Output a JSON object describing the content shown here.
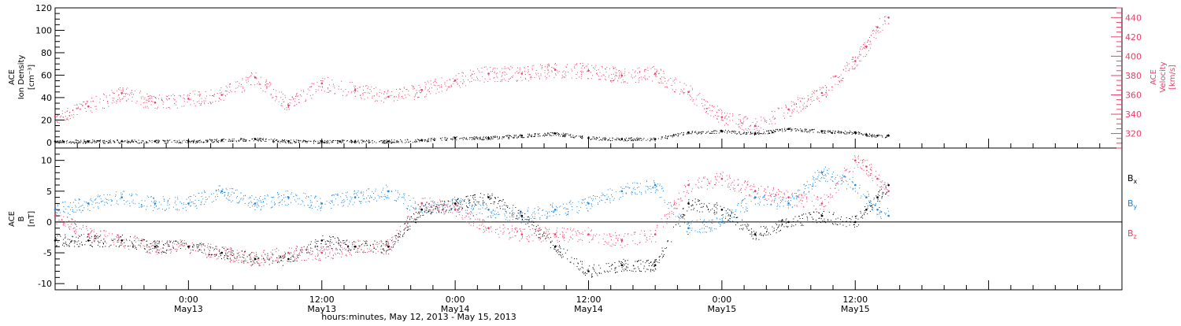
{
  "colors": {
    "black": "#000000",
    "pink": "#e8416a",
    "blue": "#1a86e0"
  },
  "x_axis": {
    "title": "hours:minutes, May 12, 2013 - May 15, 2013",
    "range_hours": [
      0,
      96
    ],
    "ticks": [
      {
        "hour": 12,
        "time": "0:00",
        "date": "May13"
      },
      {
        "hour": 24,
        "time": "12:00",
        "date": "May13"
      },
      {
        "hour": 36,
        "time": "0:00",
        "date": "May14"
      },
      {
        "hour": 48,
        "time": "12:00",
        "date": "May14"
      },
      {
        "hour": 60,
        "time": "0:00",
        "date": "May15"
      },
      {
        "hour": 72,
        "time": "12:00",
        "date": "May15"
      }
    ]
  },
  "chart_data": [
    {
      "type": "scatter",
      "panel": "top",
      "ylabel_lines": [
        "ACE",
        "Ion Density",
        "[cm⁻³]"
      ],
      "y2label_lines": [
        "ACE",
        "Velocity",
        "[km/s]"
      ],
      "ylim": [
        -5,
        120
      ],
      "yticks": [
        0,
        20,
        40,
        60,
        80,
        100,
        120
      ],
      "y2lim": [
        305,
        450
      ],
      "y2ticks": [
        320,
        340,
        360,
        380,
        400,
        420,
        440
      ],
      "series": [
        {
          "name": "Ion Density",
          "axis": "left",
          "color": "#000000",
          "x": [
            0,
            3,
            6,
            9,
            12,
            15,
            18,
            21,
            24,
            27,
            30,
            33,
            36,
            39,
            42,
            45,
            48,
            51,
            54,
            57,
            60,
            63,
            66,
            69,
            72,
            73,
            74,
            75
          ],
          "y": [
            1,
            1,
            1,
            1,
            1,
            2,
            3,
            1,
            1,
            1,
            1,
            2,
            4,
            4,
            6,
            8,
            4,
            3,
            3,
            9,
            10,
            8,
            12,
            10,
            9,
            7,
            6,
            6
          ]
        },
        {
          "name": "Velocity",
          "axis": "right",
          "color": "#e8416a",
          "x": [
            0,
            3,
            6,
            9,
            12,
            15,
            18,
            21,
            24,
            27,
            30,
            33,
            36,
            39,
            42,
            45,
            48,
            51,
            54,
            57,
            60,
            63,
            66,
            69,
            72,
            73,
            74,
            75
          ],
          "y": [
            338,
            348,
            362,
            352,
            356,
            360,
            378,
            349,
            372,
            365,
            358,
            365,
            375,
            382,
            382,
            386,
            385,
            380,
            382,
            363,
            337,
            328,
            345,
            362,
            395,
            410,
            430,
            440
          ]
        }
      ]
    },
    {
      "type": "scatter",
      "panel": "bottom",
      "ylabel_lines": [
        "ACE",
        "B",
        "[nT]"
      ],
      "ylim": [
        -11,
        12
      ],
      "yticks": [
        -10,
        -5,
        0,
        5,
        10
      ],
      "legend_placement": "right",
      "series": [
        {
          "name": "Bx",
          "color": "#000000",
          "x": [
            0,
            3,
            6,
            9,
            12,
            15,
            18,
            21,
            24,
            27,
            30,
            33,
            36,
            39,
            42,
            45,
            48,
            51,
            54,
            57,
            60,
            63,
            66,
            69,
            72,
            73,
            74,
            75
          ],
          "y": [
            -3,
            -3,
            -3,
            -4,
            -4,
            -5,
            -6,
            -6,
            -3,
            -4,
            -4,
            2,
            3,
            4,
            1,
            -4,
            -8,
            -7,
            -7,
            3,
            2,
            -2,
            0,
            1,
            0,
            2,
            4,
            6
          ]
        },
        {
          "name": "By",
          "color": "#1a86e0",
          "x": [
            0,
            3,
            6,
            9,
            12,
            15,
            18,
            21,
            24,
            27,
            30,
            33,
            36,
            39,
            42,
            45,
            48,
            51,
            54,
            57,
            60,
            63,
            66,
            69,
            72,
            73,
            74,
            75
          ],
          "y": [
            2,
            3,
            4,
            3,
            3,
            5,
            3,
            4,
            3,
            4,
            5,
            2,
            3,
            2,
            1,
            2,
            3,
            5,
            6,
            -1,
            0,
            4,
            3,
            8,
            6,
            4,
            2,
            1
          ],
          "legend_label": "By"
        },
        {
          "name": "Bz",
          "color": "#e8416a",
          "x": [
            0,
            3,
            6,
            9,
            12,
            15,
            18,
            21,
            24,
            27,
            30,
            33,
            36,
            39,
            42,
            45,
            48,
            51,
            54,
            57,
            60,
            63,
            66,
            69,
            72,
            73,
            74,
            75
          ],
          "y": [
            1,
            -2,
            -3,
            -4,
            -4,
            -5,
            -6,
            -5,
            -5,
            -4,
            -4,
            3,
            2,
            -1,
            -2,
            -2,
            -2,
            -3,
            -2,
            6,
            7,
            5,
            4,
            3,
            10,
            9,
            7,
            5
          ]
        }
      ]
    }
  ]
}
